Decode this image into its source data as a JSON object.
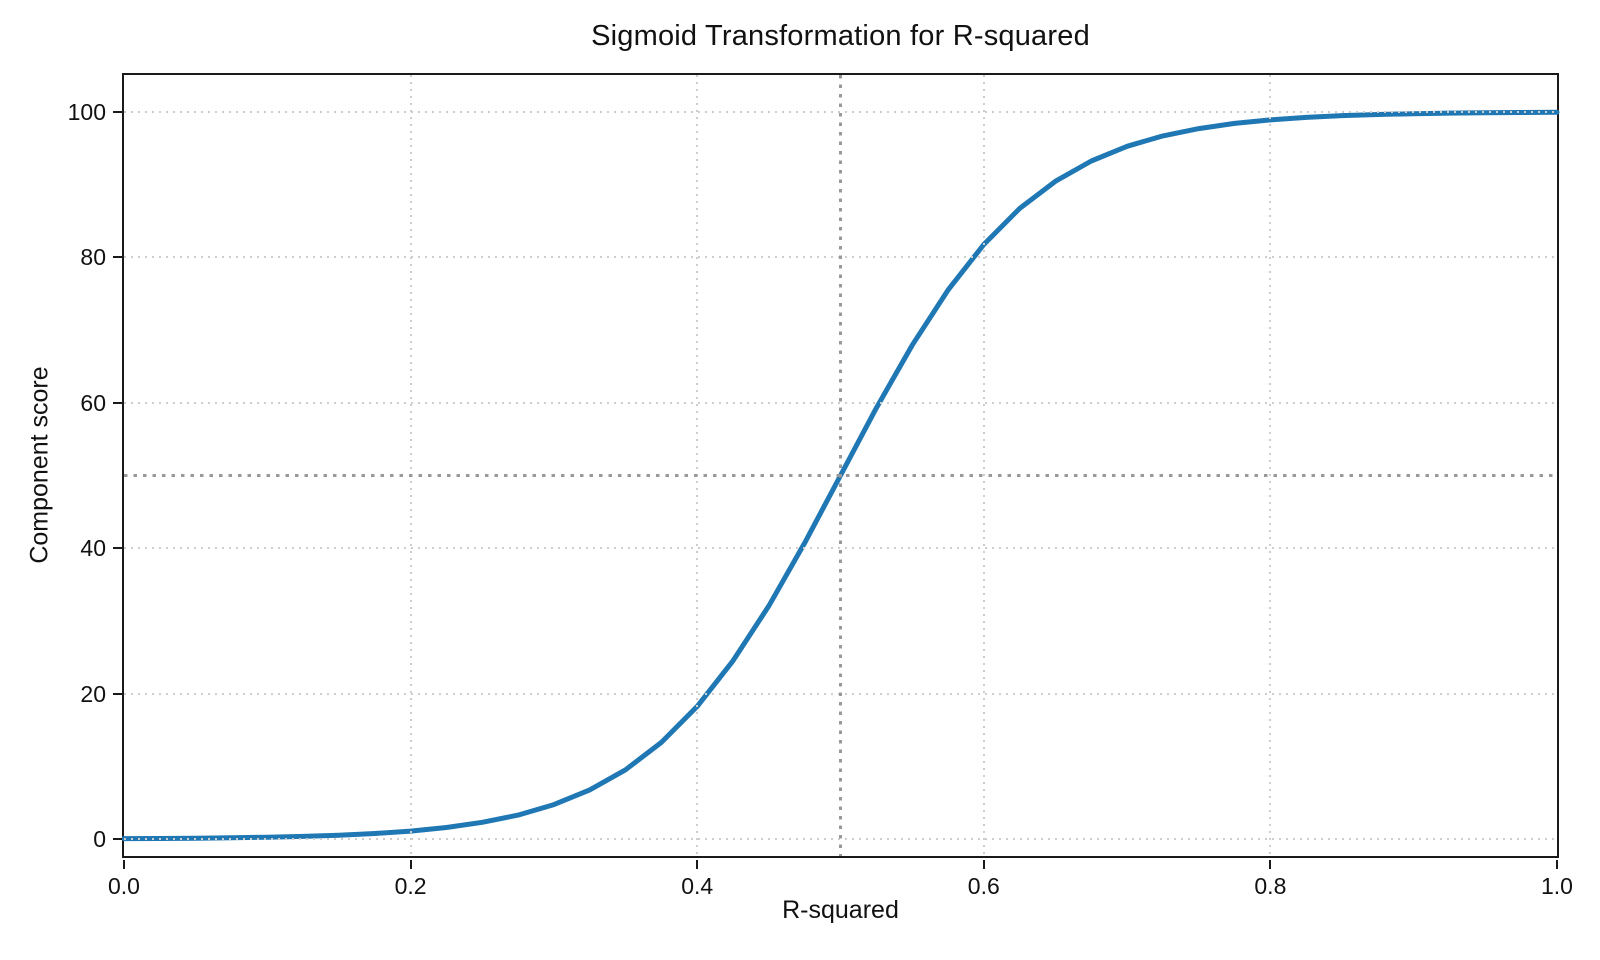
{
  "chart_data": {
    "type": "line",
    "title": "Sigmoid Transformation for R-squared",
    "xlabel": "R-squared",
    "ylabel": "Component score",
    "xlim": [
      0.0,
      1.0
    ],
    "ylim": [
      -2.33,
      105.07
    ],
    "xtick_values": [
      0.0,
      0.2,
      0.4,
      0.6,
      0.8,
      1.0
    ],
    "xtick_labels": [
      "0.0",
      "0.2",
      "0.4",
      "0.6",
      "0.8",
      "1.0"
    ],
    "ytick_values": [
      0,
      20,
      40,
      60,
      80,
      100
    ],
    "ytick_labels": [
      "0",
      "20",
      "40",
      "60",
      "80",
      "100"
    ],
    "grid": {
      "show": true,
      "linestyle": "dotted",
      "color": "#cdcdcd"
    },
    "reference_lines": {
      "vertical_x": 0.5,
      "horizontal_y": 50,
      "color": "#999999",
      "linestyle": "dotted"
    },
    "legend": {
      "show": false
    },
    "series": [
      {
        "name": "component-score-sigmoid",
        "color": "#1f77b4",
        "linewidth": 5,
        "x": [
          0,
          0.025,
          0.05,
          0.075,
          0.1,
          0.125,
          0.15,
          0.175,
          0.2,
          0.225,
          0.25,
          0.275,
          0.3,
          0.325,
          0.35,
          0.375,
          0.4,
          0.425,
          0.45,
          0.475,
          0.5,
          0.525,
          0.55,
          0.575,
          0.6,
          0.625,
          0.65,
          0.675,
          0.7,
          0.725,
          0.75,
          0.775,
          0.8,
          0.825,
          0.85,
          0.875,
          0.9,
          0.925,
          0.95,
          0.975,
          1.0
        ],
        "y": [
          0.06,
          0.08,
          0.12,
          0.17,
          0.25,
          0.36,
          0.52,
          0.76,
          1.1,
          1.59,
          2.3,
          3.3,
          4.74,
          6.76,
          9.53,
          13.29,
          18.24,
          24.51,
          32.08,
          40.73,
          50.0,
          59.27,
          67.92,
          75.49,
          81.76,
          86.71,
          90.47,
          93.24,
          95.26,
          96.7,
          97.7,
          98.41,
          98.9,
          99.24,
          99.48,
          99.64,
          99.75,
          99.83,
          99.88,
          99.92,
          99.94
        ]
      }
    ]
  }
}
